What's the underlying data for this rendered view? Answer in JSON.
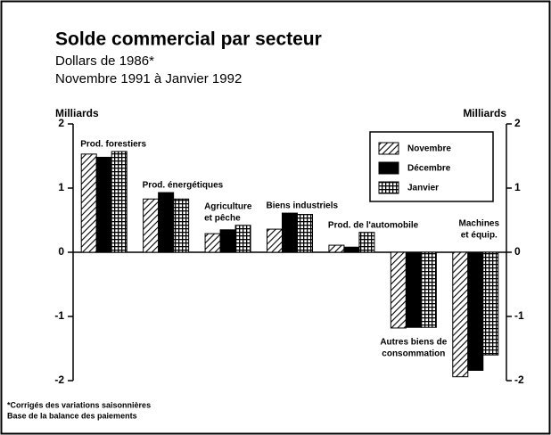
{
  "chart_data": {
    "type": "bar",
    "title": "Solde commercial par secteur",
    "subtitle": [
      "Dollars de 1986*",
      "Novembre 1991 à Janvier 1992"
    ],
    "y_label": "Milliards",
    "y2_label": "Milliards",
    "categories": [
      [
        "Prod. forestiers"
      ],
      [
        "Prod. énergétiques"
      ],
      [
        "Agriculture",
        "et pêche"
      ],
      [
        "Biens industriels"
      ],
      [
        "Prod. de l'automobile"
      ],
      [
        "Autres biens de",
        "consommation"
      ],
      [
        "Machines",
        "et équip."
      ]
    ],
    "series": [
      {
        "name": "Novembre",
        "color": "#000000",
        "pattern": "hatch",
        "values": [
          1.53,
          0.83,
          0.29,
          0.36,
          0.11,
          -1.18,
          -1.94
        ]
      },
      {
        "name": "Décembre",
        "color": "#000000",
        "pattern": "solid",
        "values": [
          1.48,
          0.93,
          0.35,
          0.61,
          0.08,
          -1.17,
          -1.84
        ]
      },
      {
        "name": "Janvier",
        "color": "#000000",
        "pattern": "grid",
        "values": [
          1.57,
          0.83,
          0.42,
          0.59,
          0.31,
          -1.17,
          -1.6
        ]
      }
    ],
    "ylim": [
      -2,
      2
    ],
    "yticks": [
      -2,
      -1,
      0,
      1,
      2
    ],
    "y2lim": [
      -2,
      2
    ],
    "y2ticks": [
      -2,
      -1,
      0,
      1,
      2
    ],
    "legend": "upper right",
    "grid": false,
    "footnotes": [
      "*Corrigés des variations saisonnières",
      "Base de la balance des paiements"
    ]
  }
}
